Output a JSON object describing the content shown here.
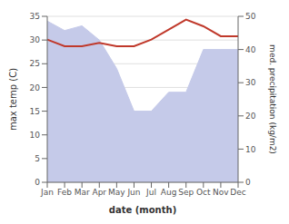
{
  "chart_data": {
    "type": "area",
    "categories": [
      "Jan",
      "Feb",
      "Mar",
      "Apr",
      "May",
      "Jun",
      "Jul",
      "Aug",
      "Sep",
      "Oct",
      "Nov",
      "Dec"
    ],
    "series": [
      {
        "type": "area",
        "color": "#c5cae9",
        "values": [
          34,
          32,
          33,
          30,
          24,
          15,
          15,
          19,
          19,
          28,
          28,
          28
        ]
      },
      {
        "type": "line",
        "color": "#c0392b",
        "axis": "y2",
        "values": [
          43,
          41,
          41,
          42,
          41,
          41,
          43,
          46,
          49,
          47,
          44,
          44
        ]
      }
    ],
    "xlabel": "date (month)",
    "ylabel": "max temp (C)",
    "y2label": "med. precipitation (kg/m2)",
    "ylim": [
      0,
      35
    ],
    "yticks": [
      0,
      5,
      10,
      15,
      20,
      25,
      30,
      35
    ],
    "y2lim": [
      0,
      50
    ],
    "y2ticks": [
      0,
      10,
      20,
      30,
      40,
      50
    ],
    "grid": true
  }
}
